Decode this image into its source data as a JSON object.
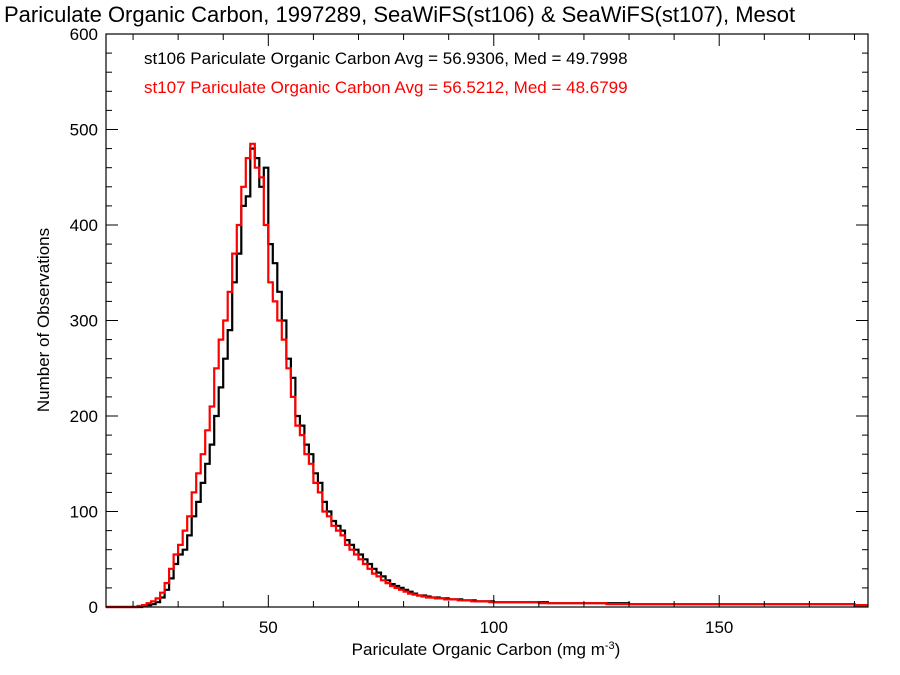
{
  "chart_data": {
    "type": "histogram",
    "title": "Pariculate Organic Carbon, 1997289, SeaWiFS(st106) & SeaWiFS(st107), Mesot",
    "xlabel": "Pariculate Organic Carbon (mg m",
    "xlabel_exp": "-3",
    "xlabel_close": ")",
    "ylabel": "Number of Observations",
    "xlim": [
      14,
      183
    ],
    "ylim": [
      0,
      600
    ],
    "xticks": [
      50,
      100,
      150
    ],
    "yticks": [
      0,
      100,
      200,
      300,
      400,
      500,
      600
    ],
    "grid": false,
    "legend": [
      {
        "text": "st106 Pariculate Organic Carbon Avg = 56.9306, Med = 49.7998",
        "color": "#000000"
      },
      {
        "text": "st107 Pariculate Organic Carbon Avg = 56.5212, Med = 48.6799",
        "color": "#ff0000"
      }
    ],
    "bin_width": 1,
    "series": [
      {
        "name": "st106",
        "color": "#000000",
        "x": [
          14,
          15,
          16,
          17,
          18,
          19,
          20,
          21,
          22,
          23,
          24,
          25,
          26,
          27,
          28,
          29,
          30,
          31,
          32,
          33,
          34,
          35,
          36,
          37,
          38,
          39,
          40,
          41,
          42,
          43,
          44,
          45,
          46,
          47,
          48,
          49,
          50,
          51,
          52,
          53,
          54,
          55,
          56,
          57,
          58,
          59,
          60,
          61,
          62,
          63,
          64,
          65,
          66,
          67,
          68,
          69,
          70,
          71,
          72,
          73,
          74,
          75,
          76,
          77,
          78,
          79,
          80,
          81,
          82,
          83,
          84,
          85,
          86,
          87,
          88,
          89,
          90,
          91,
          92,
          93,
          94,
          95,
          96,
          97,
          98,
          99,
          100,
          102,
          104,
          106,
          108,
          110,
          112,
          114,
          116,
          118,
          120,
          125,
          130,
          135,
          140,
          145,
          150,
          155,
          160,
          165,
          170,
          175,
          180,
          183
        ],
        "y": [
          0,
          0,
          0,
          0,
          0,
          0,
          0,
          0,
          1,
          2,
          3,
          5,
          10,
          18,
          30,
          45,
          55,
          60,
          75,
          95,
          110,
          130,
          150,
          170,
          200,
          230,
          260,
          290,
          340,
          370,
          420,
          430,
          480,
          470,
          440,
          460,
          380,
          360,
          330,
          300,
          260,
          240,
          200,
          190,
          170,
          160,
          140,
          130,
          110,
          100,
          90,
          85,
          80,
          70,
          65,
          60,
          55,
          50,
          45,
          40,
          36,
          32,
          28,
          24,
          22,
          20,
          18,
          16,
          14,
          12,
          12,
          11,
          10,
          10,
          9,
          9,
          8,
          8,
          8,
          7,
          7,
          7,
          6,
          6,
          6,
          6,
          5,
          5,
          5,
          5,
          5,
          5,
          4,
          4,
          4,
          4,
          4,
          4,
          3,
          3,
          3,
          3,
          3,
          3,
          3,
          3,
          3,
          3,
          2,
          2
        ]
      },
      {
        "name": "st107",
        "color": "#ff0000",
        "x": [
          14,
          15,
          16,
          17,
          18,
          19,
          20,
          21,
          22,
          23,
          24,
          25,
          26,
          27,
          28,
          29,
          30,
          31,
          32,
          33,
          34,
          35,
          36,
          37,
          38,
          39,
          40,
          41,
          42,
          43,
          44,
          45,
          46,
          47,
          48,
          49,
          50,
          51,
          52,
          53,
          54,
          55,
          56,
          57,
          58,
          59,
          60,
          61,
          62,
          63,
          64,
          65,
          66,
          67,
          68,
          69,
          70,
          71,
          72,
          73,
          74,
          75,
          76,
          77,
          78,
          79,
          80,
          81,
          82,
          83,
          84,
          85,
          86,
          87,
          88,
          89,
          90,
          91,
          92,
          93,
          94,
          95,
          96,
          97,
          98,
          99,
          100,
          102,
          104,
          106,
          108,
          110,
          112,
          114,
          116,
          118,
          120,
          125,
          130,
          135,
          140,
          145,
          150,
          155,
          160,
          165,
          170,
          175,
          180,
          183
        ],
        "y": [
          0,
          0,
          0,
          0,
          0,
          0,
          0,
          1,
          2,
          4,
          6,
          9,
          15,
          25,
          40,
          55,
          65,
          80,
          95,
          120,
          140,
          160,
          185,
          210,
          250,
          280,
          300,
          330,
          370,
          400,
          440,
          470,
          485,
          460,
          450,
          400,
          340,
          320,
          300,
          280,
          250,
          220,
          190,
          180,
          160,
          150,
          130,
          120,
          100,
          95,
          85,
          80,
          75,
          65,
          60,
          55,
          50,
          45,
          40,
          35,
          32,
          28,
          25,
          22,
          20,
          18,
          16,
          14,
          13,
          12,
          11,
          10,
          10,
          9,
          9,
          8,
          8,
          8,
          7,
          7,
          7,
          6,
          6,
          6,
          6,
          5,
          5,
          5,
          5,
          5,
          5,
          4,
          4,
          4,
          4,
          4,
          4,
          3,
          3,
          3,
          3,
          3,
          3,
          3,
          3,
          3,
          3,
          3,
          2,
          2
        ]
      }
    ]
  }
}
